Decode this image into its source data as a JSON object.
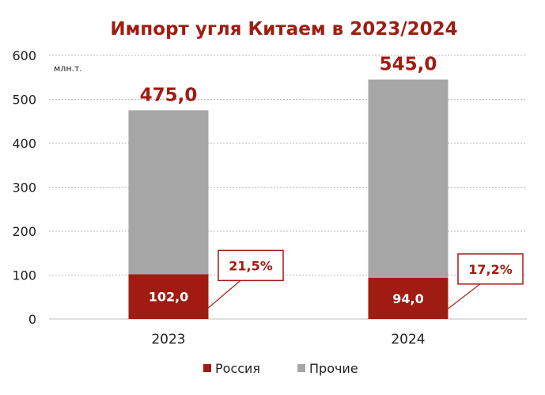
{
  "chart_data": {
    "type": "bar",
    "stacked": true,
    "title": "Импорт угля Китаем в 2023/2024",
    "unit": "млн.т.",
    "categories": [
      "2023",
      "2024"
    ],
    "ylim": [
      0,
      600
    ],
    "yticks": [
      "0",
      "100",
      "200",
      "300",
      "400",
      "500",
      "600"
    ],
    "grid": true,
    "legend_position": "bottom",
    "series": [
      {
        "name": "Россия",
        "values": [
          102.0,
          94.0
        ],
        "labels": [
          "102,0",
          "94,0"
        ],
        "color": "#a01c12"
      },
      {
        "name": "Прочие",
        "values": [
          373.0,
          451.0
        ],
        "color": "#a6a6a6"
      }
    ],
    "totals": [
      475.0,
      545.0
    ],
    "total_labels": [
      "475,0",
      "545,0"
    ],
    "share_labels": [
      "21,5%",
      "17,2%"
    ]
  }
}
